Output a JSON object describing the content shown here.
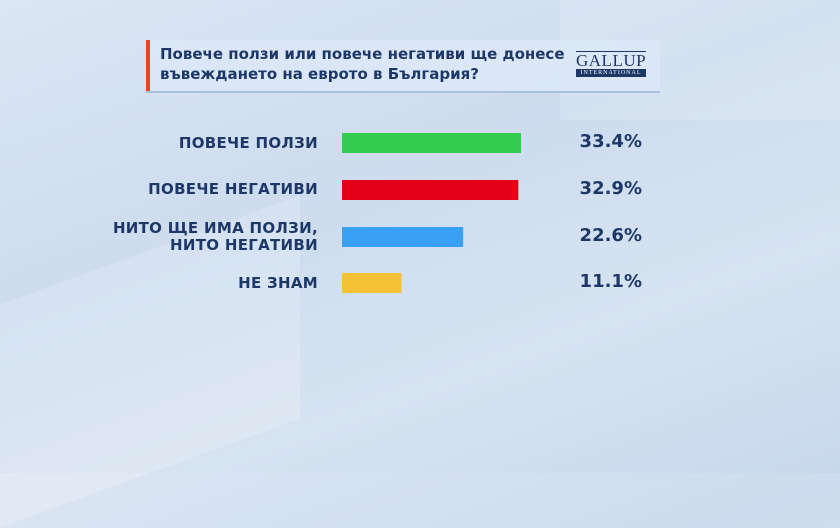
{
  "header": {
    "title": "Повече ползи или повече негативи ще донесе въвеждането на еврото в България?",
    "accent_color": "#e8461e"
  },
  "logo": {
    "name": "GALLUP",
    "sub": "INTERNATIONAL"
  },
  "chart_data": {
    "type": "bar",
    "orientation": "horizontal",
    "categories": [
      "ПОВЕЧЕ ПОЛЗИ",
      "ПОВЕЧЕ НЕГАТИВИ",
      "НИТО ЩЕ ИМА ПОЛЗИ, НИТО НЕГАТИВИ",
      "НЕ ЗНАМ"
    ],
    "values": [
      33.4,
      32.9,
      22.6,
      11.1
    ],
    "value_labels": [
      "33.4%",
      "32.9%",
      "22.6%",
      "11.1%"
    ],
    "colors": [
      "#33cc4f",
      "#e30016",
      "#38a0f5",
      "#f5c136"
    ],
    "grid": false,
    "xlabel": "",
    "ylabel": ""
  }
}
